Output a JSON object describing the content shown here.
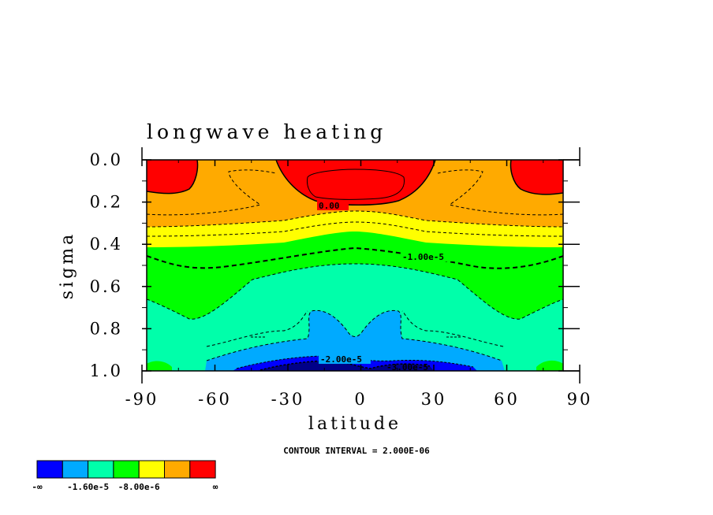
{
  "chart_data": {
    "type": "contour",
    "title": "longwave heating",
    "xlabel": "latitude",
    "ylabel": "sigma",
    "xlim": [
      -90,
      90
    ],
    "ylim": [
      1.0,
      0.0
    ],
    "x_ticks": [
      "-90",
      "-60",
      "-30",
      "0",
      "30",
      "60",
      "90"
    ],
    "y_ticks": [
      "0.0",
      "0.2",
      "0.4",
      "0.6",
      "0.8",
      "1.0"
    ],
    "contour_interval_text": "CONTOUR INTERVAL = 2.000E-06",
    "contour_labels": [
      "0.00",
      "-1.00e-5",
      "-2.00e-5",
      "-3.00e-5"
    ],
    "colorbar": {
      "colors": [
        "#0000ff",
        "#00aaff",
        "#00ffaa",
        "#00ff00",
        "#ffff00",
        "#ffaa00",
        "#ff0000"
      ],
      "labels": [
        "-∞",
        "-1.60e-5",
        "-8.00e-6",
        "∞"
      ]
    },
    "regions": [
      {
        "name": "upper-orange",
        "color": "#ffaa00",
        "description": "sigma 0.0-0.33 outside red caps"
      },
      {
        "name": "red-polar-caps",
        "color": "#ff0000",
        "sigma_top": 0.0,
        "sigma_bottom": 0.16
      },
      {
        "name": "red-equatorial",
        "color": "#ff0000",
        "sigma_top": 0.0,
        "sigma_bottom": 0.22
      },
      {
        "name": "yellow-band",
        "color": "#ffff00",
        "sigma_top": 0.27,
        "sigma_bottom": 0.42
      },
      {
        "name": "green-band",
        "color": "#00ff00",
        "sigma_top": 0.36,
        "sigma_bottom": 0.8
      },
      {
        "name": "teal-band",
        "color": "#00ffaa",
        "sigma_top": 0.5,
        "sigma_bottom": 1.0
      },
      {
        "name": "light-blue-core",
        "color": "#00aaff",
        "sigma_top": 0.72,
        "sigma_bottom": 1.0
      },
      {
        "name": "blue-surface-core",
        "color": "#0000ff",
        "sigma_top": 0.92,
        "sigma_bottom": 1.0
      }
    ]
  }
}
